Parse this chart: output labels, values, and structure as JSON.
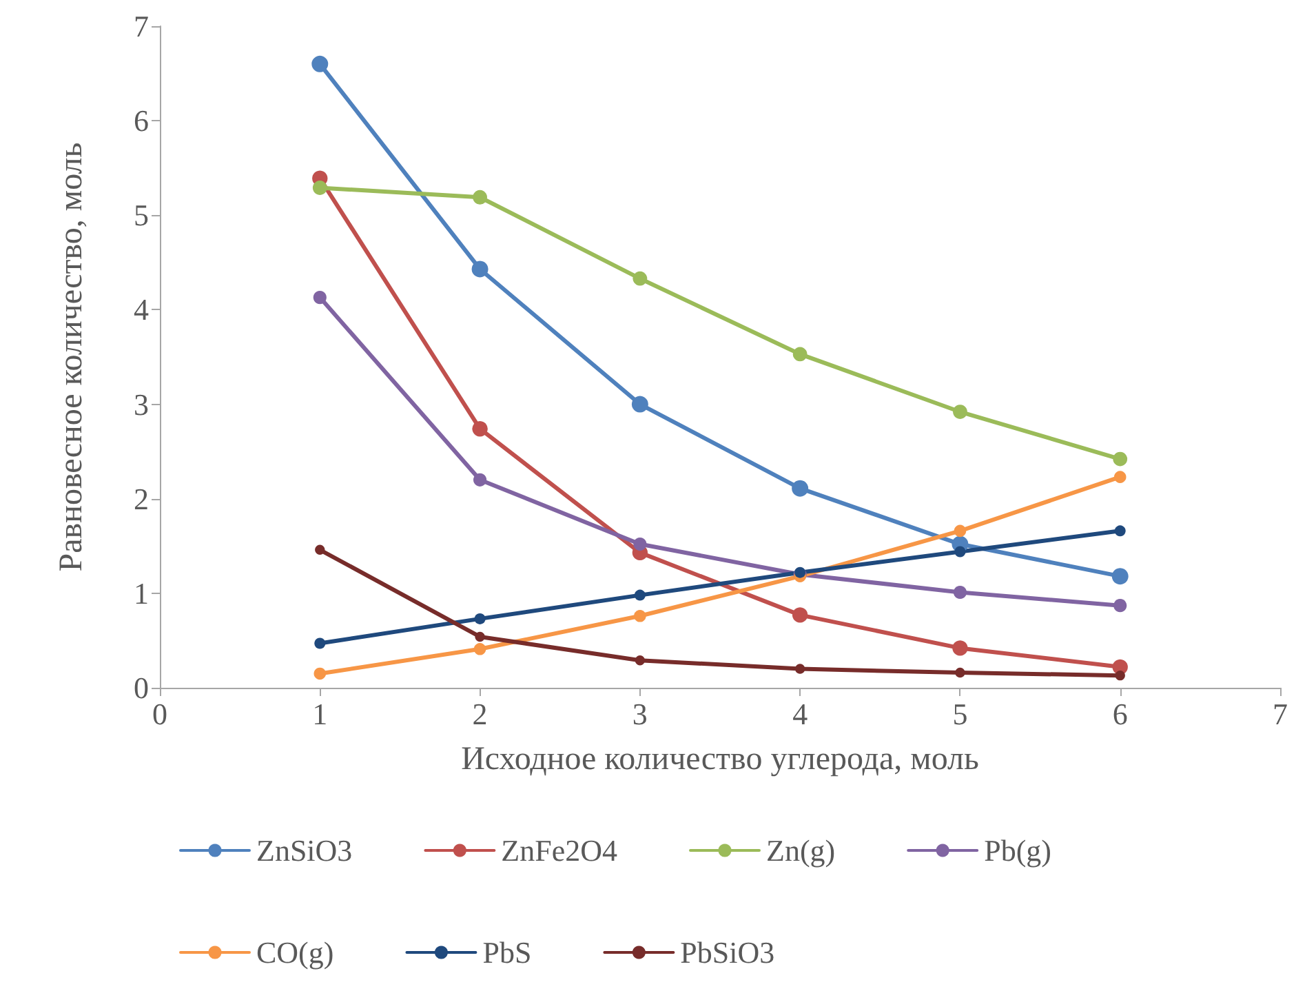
{
  "chart_data": {
    "type": "line",
    "xlabel": "Исходное количество углерода, моль",
    "ylabel": "Равновесное количество, моль",
    "x": [
      1,
      2,
      3,
      4,
      5,
      6
    ],
    "xlim": [
      0,
      7
    ],
    "xticks": [
      0,
      1,
      2,
      3,
      4,
      5,
      6,
      7
    ],
    "ylim": [
      0,
      7
    ],
    "yticks": [
      0,
      1,
      2,
      3,
      4,
      5,
      6,
      7
    ],
    "grid": false,
    "legend": "bottom",
    "marker": "circle",
    "line_style": "solid",
    "series": [
      {
        "name": "ZnSiO3",
        "color": "#4f81bd",
        "values": [
          6.6,
          4.43,
          3.0,
          2.11,
          1.52,
          1.18
        ]
      },
      {
        "name": "ZnFe2O4",
        "color": "#c0504d",
        "values": [
          5.39,
          2.74,
          1.43,
          0.77,
          0.42,
          0.22
        ]
      },
      {
        "name": "Zn(g)",
        "color": "#9bbb59",
        "values": [
          5.29,
          5.19,
          4.33,
          3.53,
          2.92,
          2.42
        ]
      },
      {
        "name": "Pb(g)",
        "color": "#8064a2",
        "values": [
          4.13,
          2.2,
          1.52,
          1.2,
          1.01,
          0.87
        ]
      },
      {
        "name": "CO(g)",
        "color": "#f79646",
        "values": [
          0.15,
          0.41,
          0.76,
          1.18,
          1.66,
          2.23
        ]
      },
      {
        "name": "PbS",
        "color": "#1f497d",
        "values": [
          0.47,
          0.73,
          0.98,
          1.22,
          1.44,
          1.66
        ]
      },
      {
        "name": "PbSiO3",
        "color": "#772c2a",
        "values": [
          1.46,
          0.54,
          0.29,
          0.2,
          0.16,
          0.13
        ]
      }
    ]
  }
}
